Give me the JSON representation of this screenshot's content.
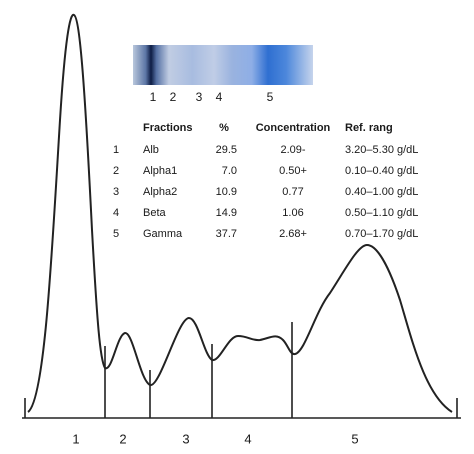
{
  "gel": {
    "labels": [
      "1",
      "2",
      "3",
      "4",
      "5"
    ]
  },
  "table": {
    "header": [
      "Fractions",
      "%",
      "Concentration",
      "Ref. rang"
    ],
    "rows": [
      [
        "1",
        "Alb",
        "29.5",
        "2.09-",
        "3.20–5.30 g/dL"
      ],
      [
        "2",
        "Alpha1",
        "7.0",
        "0.50+",
        "0.10–0.40 g/dL"
      ],
      [
        "3",
        "Alpha2",
        "10.9",
        "0.77",
        "0.40–1.00 g/dL"
      ],
      [
        "4",
        "Beta",
        "14.9",
        "1.06",
        "0.50–1.10 g/dL"
      ],
      [
        "5",
        "Gamma",
        "37.7",
        "2.68+",
        "0.70–1.70 g/dL"
      ]
    ]
  },
  "trace": {
    "labels": [
      "1",
      "2",
      "3",
      "4",
      "5"
    ]
  }
}
